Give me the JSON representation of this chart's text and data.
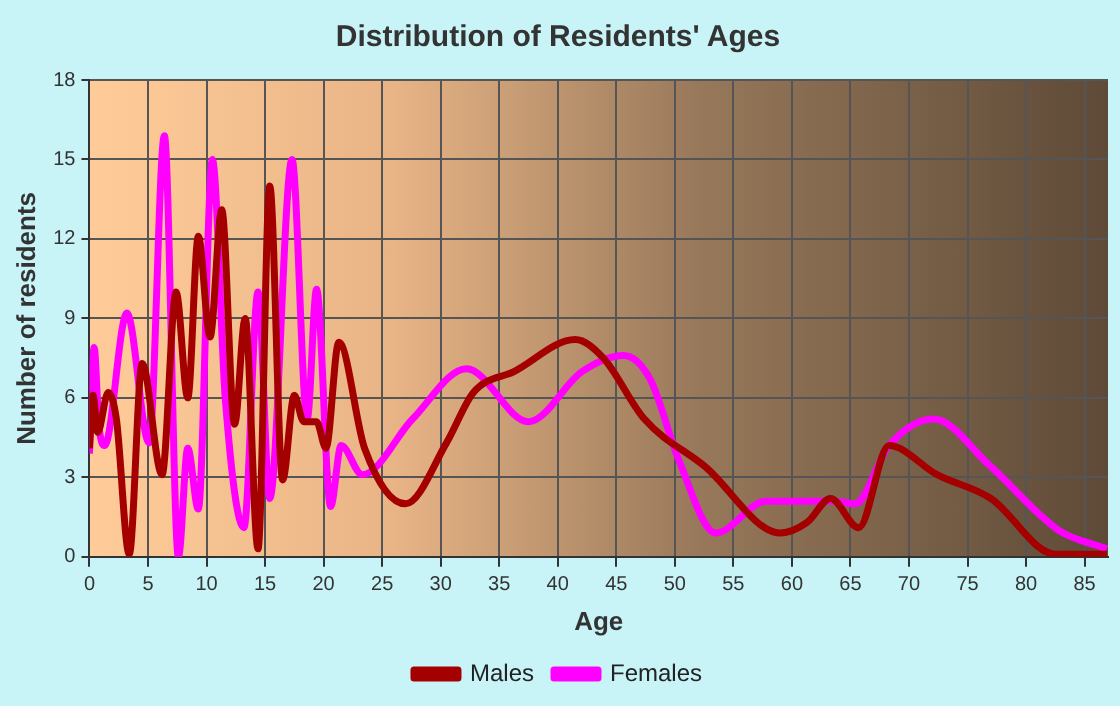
{
  "chart_data": {
    "type": "line",
    "title": "Distribution of Residents' Ages",
    "xlabel": "Age",
    "ylabel": "Number of residents",
    "xlim": [
      0,
      87
    ],
    "xticks": [
      0,
      5,
      10,
      15,
      20,
      25,
      30,
      35,
      40,
      45,
      50,
      55,
      60,
      65,
      70,
      75,
      80,
      85
    ],
    "ylim": [
      0,
      18
    ],
    "yticks": [
      0,
      3,
      6,
      9,
      12,
      15,
      18
    ],
    "grid": true,
    "legend": "bottom",
    "marker": "none",
    "series": [
      {
        "name": "Males",
        "color": "#a50000",
        "x": [
          0,
          0.3,
          0.7,
          1.6,
          2.3,
          3.4,
          4.5,
          6.2,
          7.4,
          8.4,
          9.3,
          10.3,
          11.3,
          12.4,
          13.3,
          14.4,
          15.4,
          16.5,
          17.5,
          18.3,
          19.4,
          20.2,
          21.3,
          23.5,
          27,
          30.5,
          32.8,
          36.3,
          41.5,
          43.9,
          47.4,
          52.6,
          59,
          61.3,
          63.3,
          65.7,
          68.3,
          72.4,
          77,
          82.5,
          86.9
        ],
        "values": [
          4.1,
          6.1,
          4.7,
          6.2,
          5.2,
          0.1,
          7.3,
          3.1,
          10,
          6,
          12.1,
          8.3,
          13.1,
          5,
          9,
          0.3,
          14,
          2.9,
          6.1,
          5.1,
          5.1,
          4.1,
          8.1,
          4.1,
          2,
          4.3,
          6.2,
          7,
          8.2,
          7.5,
          5.2,
          3.4,
          0.9,
          1.3,
          2.2,
          1.1,
          4.2,
          3.1,
          2.2,
          0.1,
          0.1
        ]
      },
      {
        "name": "Females",
        "color": "#ff00ff",
        "x": [
          0,
          0.4,
          0.8,
          1.3,
          3.2,
          5.1,
          6.4,
          7.6,
          8.4,
          9.3,
          10.5,
          11.6,
          13.2,
          14.4,
          15.4,
          17.3,
          18.6,
          19.4,
          20.6,
          21.5,
          23.3,
          27.6,
          32.2,
          37.5,
          42.1,
          45.6,
          47.9,
          50.3,
          53.5,
          57.8,
          63.6,
          65.4,
          68.3,
          72.1,
          77,
          82.8,
          86.9
        ],
        "values": [
          3.9,
          7.9,
          5,
          4.2,
          9.2,
          4.3,
          15.9,
          0,
          4.1,
          1.8,
          15,
          6,
          1.1,
          10,
          2.2,
          15,
          5.2,
          10.1,
          1.9,
          4.2,
          3.1,
          5.2,
          7.1,
          5.1,
          7,
          7.6,
          6.7,
          3.7,
          0.9,
          2.1,
          2.1,
          2,
          4.2,
          5.2,
          3.4,
          1,
          0.3
        ]
      }
    ]
  }
}
